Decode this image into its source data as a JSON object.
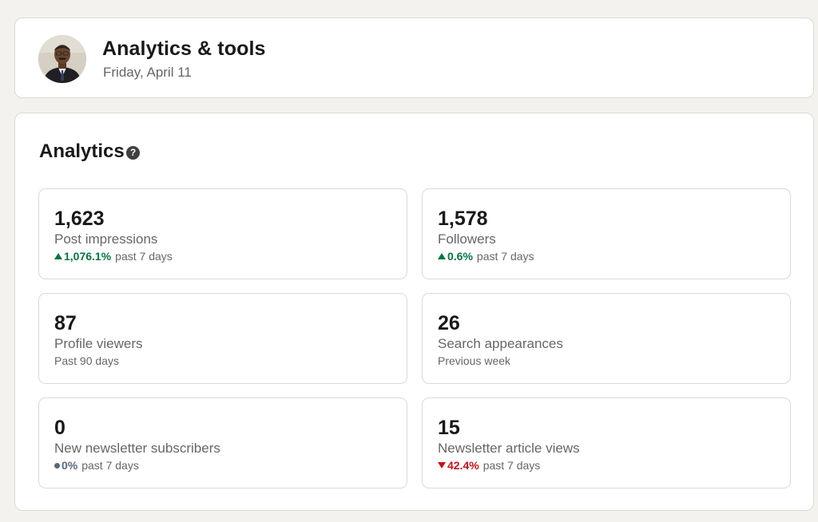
{
  "header": {
    "title": "Analytics & tools",
    "date": "Friday, April 11"
  },
  "analytics": {
    "title": "Analytics",
    "help_icon": "question-circle-icon",
    "metrics": [
      {
        "value": "1,623",
        "label": "Post impressions",
        "trend": "up",
        "change": "1,076.1%",
        "period": "past 7 days"
      },
      {
        "value": "1,578",
        "label": "Followers",
        "trend": "up",
        "change": "0.6%",
        "period": "past 7 days"
      },
      {
        "value": "87",
        "label": "Profile viewers",
        "period": "Past 90 days"
      },
      {
        "value": "26",
        "label": "Search appearances",
        "period": "Previous week"
      },
      {
        "value": "0",
        "label": "New newsletter subscribers",
        "trend": "flat",
        "change": "0%",
        "period": "past 7 days"
      },
      {
        "value": "15",
        "label": "Newsletter article views",
        "trend": "down",
        "change": "42.4%",
        "period": "past 7 days"
      }
    ]
  },
  "colors": {
    "background": "#f4f2ee",
    "trend_up": "#057642",
    "trend_down": "#cc1016",
    "trend_flat": "#56687a"
  }
}
